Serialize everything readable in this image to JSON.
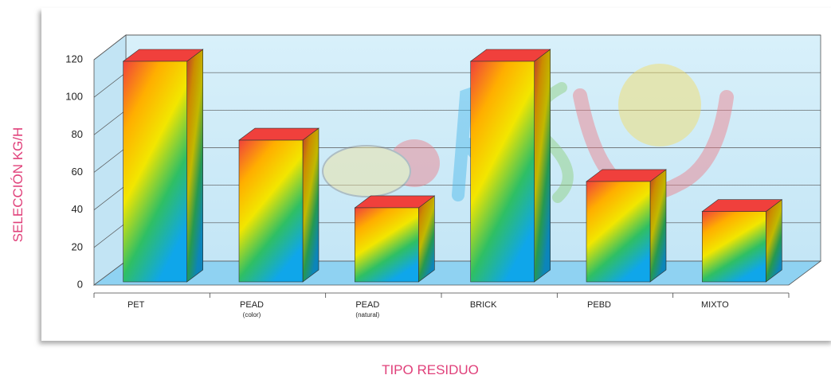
{
  "chart_data": {
    "type": "bar3d",
    "x_label": "TIPO RESIDUO",
    "y_label": "SELECCIÓN KG/H",
    "categories": [
      "PET",
      "PEAD",
      "PEAD",
      "BRICK",
      "PEBD",
      "MIXTO"
    ],
    "subcategories": [
      null,
      "(color)",
      "(natural)",
      null,
      null,
      null
    ],
    "values": [
      120,
      78,
      42,
      120,
      56,
      40
    ],
    "gradient": [
      "#f0403c",
      "#ffae00",
      "#f2e600",
      "#2fbf64",
      "#0fa6ea"
    ],
    "ylim": [
      0,
      120
    ],
    "yticks": [
      0,
      20,
      40,
      60,
      80,
      100,
      120
    ],
    "grid": true
  }
}
